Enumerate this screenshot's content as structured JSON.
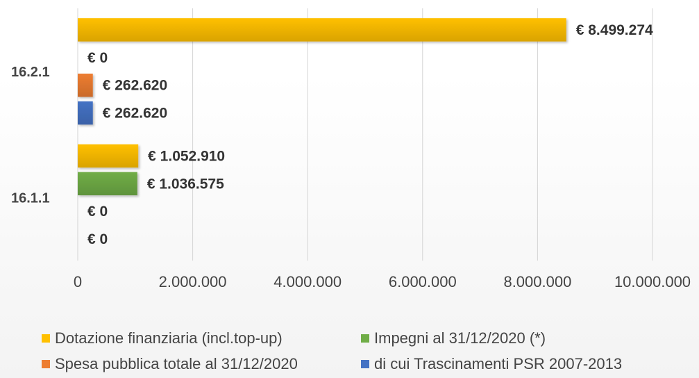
{
  "chart_data": {
    "type": "bar",
    "orientation": "horizontal",
    "title": "",
    "xlabel": "",
    "ylabel": "",
    "categories": [
      "16.2.1",
      "16.1.1"
    ],
    "xlim": [
      0,
      10000000
    ],
    "x_ticks": [
      0,
      2000000,
      4000000,
      6000000,
      8000000,
      10000000
    ],
    "x_tick_labels": [
      "0",
      "2.000.000",
      "4.000.000",
      "6.000.000",
      "8.000.000",
      "10.000.000"
    ],
    "grid": true,
    "legend_position": "bottom",
    "series": [
      {
        "name": "Dotazione finanziaria (incl.top-up)",
        "color": "#FFC000",
        "values": [
          8499274,
          1052910
        ],
        "labels": [
          "€ 8.499.274",
          "€ 1.052.910"
        ]
      },
      {
        "name": "Impegni al 31/12/2020 (*)",
        "color": "#70AD47",
        "values": [
          0,
          1036575
        ],
        "labels": [
          "€ 0",
          "€ 1.036.575"
        ]
      },
      {
        "name": "Spesa pubblica totale al 31/12/2020",
        "color": "#ED7D31",
        "values": [
          262620,
          0
        ],
        "labels": [
          "€ 262.620",
          "€ 0"
        ]
      },
      {
        "name": "di cui Trascinamenti PSR 2007-2013",
        "color": "#4472C4",
        "values": [
          262620,
          0
        ],
        "labels": [
          "€ 262.620",
          "€ 0"
        ]
      }
    ]
  }
}
